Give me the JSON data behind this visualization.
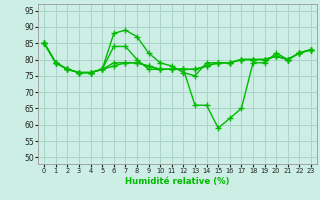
{
  "xlabel": "Humidité relative (%)",
  "background_color": "#cceee4",
  "grid_color": "#aad4c8",
  "line_color": "#00bb00",
  "xlim": [
    -0.5,
    23.5
  ],
  "ylim": [
    48,
    97
  ],
  "yticks": [
    50,
    55,
    60,
    65,
    70,
    75,
    80,
    85,
    90,
    95
  ],
  "xticks": [
    0,
    1,
    2,
    3,
    4,
    5,
    6,
    7,
    8,
    9,
    10,
    11,
    12,
    13,
    14,
    15,
    16,
    17,
    18,
    19,
    20,
    21,
    22,
    23
  ],
  "series": [
    [
      85,
      79,
      77,
      76,
      76,
      77,
      88,
      89,
      87,
      82,
      79,
      78,
      76,
      75,
      79,
      79,
      79,
      80,
      80,
      80,
      81,
      80,
      82,
      83
    ],
    [
      85,
      79,
      77,
      76,
      76,
      77,
      84,
      84,
      80,
      77,
      77,
      77,
      77,
      77,
      78,
      79,
      79,
      80,
      80,
      80,
      81,
      80,
      82,
      83
    ],
    [
      85,
      79,
      77,
      76,
      76,
      77,
      79,
      79,
      79,
      78,
      77,
      77,
      77,
      77,
      78,
      79,
      79,
      80,
      80,
      80,
      81,
      80,
      82,
      83
    ],
    [
      85,
      79,
      77,
      76,
      76,
      77,
      78,
      79,
      79,
      78,
      77,
      77,
      77,
      66,
      66,
      59,
      62,
      65,
      79,
      79,
      82,
      80,
      82,
      83
    ]
  ],
  "marker": "+",
  "markersize": 4,
  "linewidth": 1.0
}
